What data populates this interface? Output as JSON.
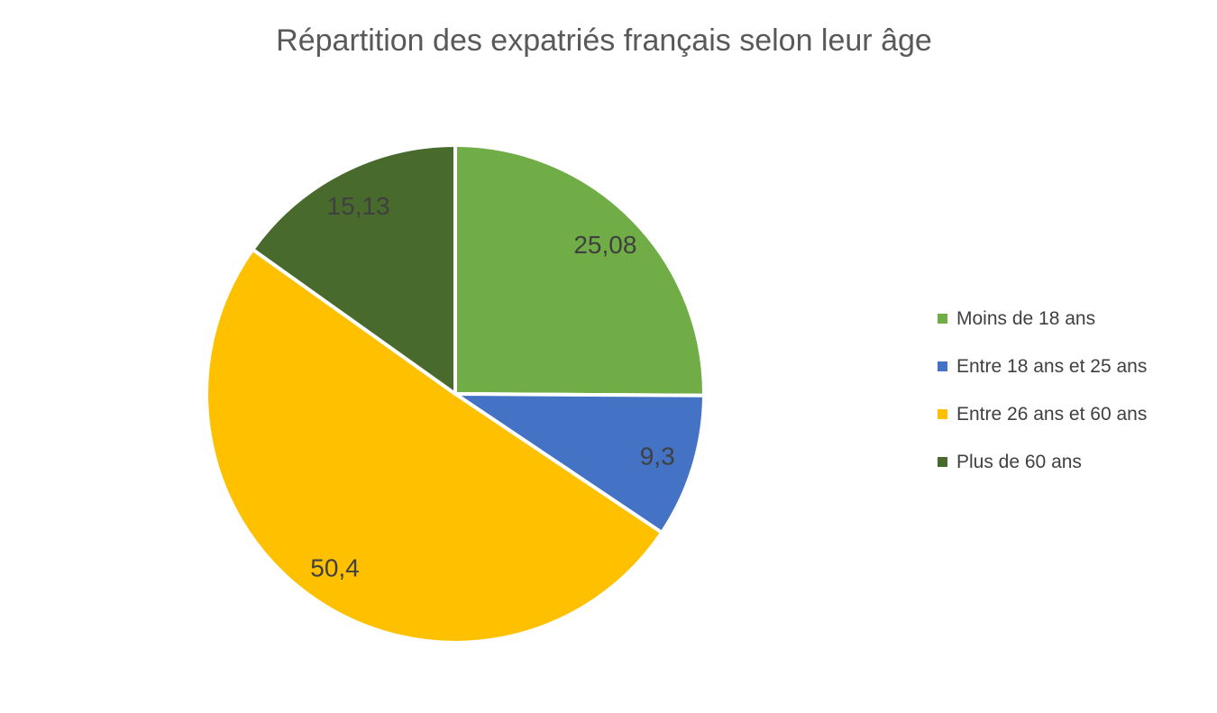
{
  "title": "Répartition des expatriés français selon leur âge",
  "colors": {
    "background": "#FFFFFF",
    "title_text": "#595959",
    "data_label_text": "#404040",
    "legend_text": "#404040",
    "slice_border": "#FFFFFF"
  },
  "chart_data": {
    "type": "pie",
    "title": "Répartition des expatriés français selon leur âge",
    "unit": "percent",
    "categories": [
      "Moins de 18 ans",
      "Entre 18 ans et 25 ans",
      "Entre 26 ans et 60 ans",
      "Plus de 60 ans"
    ],
    "values": [
      25.08,
      9.3,
      50.4,
      15.13
    ],
    "value_labels": [
      "25,08",
      "9,3",
      "50,4",
      "15,13"
    ],
    "slice_colors": [
      "#70AD47",
      "#4472C4",
      "#FFC000",
      "#486A2C"
    ],
    "start_angle_deg": 0,
    "direction": "clockwise",
    "legend_position": "right",
    "legend": [
      {
        "label": "Moins de 18 ans",
        "color": "#70AD47"
      },
      {
        "label": "Entre 18 ans et 25 ans",
        "color": "#4472C4"
      },
      {
        "label": "Entre 26 ans et 60 ans",
        "color": "#FFC000"
      },
      {
        "label": "Plus de 60 ans",
        "color": "#486A2C"
      }
    ]
  }
}
